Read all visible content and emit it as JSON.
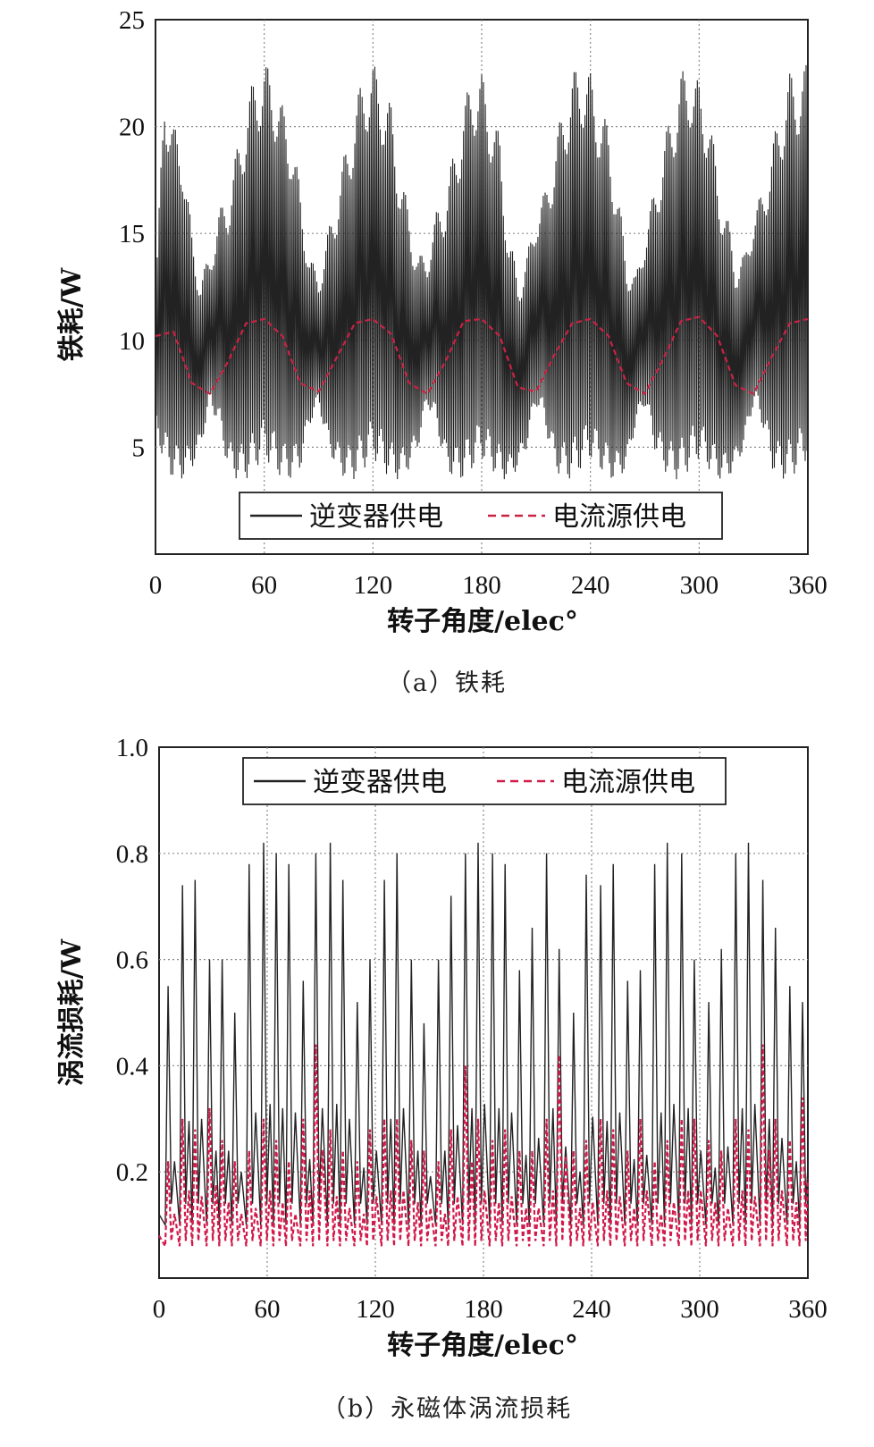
{
  "chart_data": [
    {
      "type": "line",
      "panel": "a",
      "caption": "（a）铁耗",
      "xlabel": "转子角度/elec°",
      "ylabel": "铁耗/W",
      "xlim": [
        0,
        360
      ],
      "ylim": [
        0,
        25
      ],
      "xticks": [
        0,
        60,
        120,
        180,
        240,
        300,
        360
      ],
      "xtick_labels": [
        "0",
        "60",
        "120",
        "180",
        "240",
        "300",
        "360"
      ],
      "yticks": [
        5,
        10,
        15,
        20,
        25
      ],
      "ytick_labels": [
        "5",
        "10",
        "15",
        "20",
        "25"
      ],
      "grid": true,
      "legend_position": "bottom-center",
      "series": [
        {
          "name": "逆变器供电",
          "style": "solid",
          "color": "#222222",
          "description_values": {
            "mean": 10,
            "min": 3,
            "max": 23.5
          },
          "x": [
            0,
            5,
            10,
            15,
            20,
            25,
            30,
            35,
            40,
            45,
            50,
            55,
            60,
            65,
            70,
            75,
            80,
            85,
            90,
            95,
            100,
            105,
            110,
            115,
            120,
            125,
            130,
            135,
            140,
            145,
            150,
            155,
            160,
            165,
            170,
            175,
            180,
            185,
            190,
            195,
            200,
            205,
            210,
            215,
            220,
            225,
            230,
            235,
            240,
            245,
            250,
            255,
            260,
            265,
            270,
            275,
            280,
            285,
            290,
            295,
            300,
            305,
            310,
            315,
            320,
            325,
            330,
            335,
            340,
            345,
            350,
            355,
            360
          ],
          "y_max": [
            12,
            22.5,
            20,
            19.5,
            15,
            13,
            14,
            16,
            17,
            19,
            21,
            22.5,
            23,
            22.5,
            21,
            20,
            17,
            14,
            13,
            15,
            17,
            19,
            21,
            22.5,
            23,
            22,
            21,
            18,
            16,
            14,
            14,
            16,
            17,
            19,
            21,
            22.5,
            22.5,
            21,
            19.5,
            15,
            13,
            14,
            16,
            17,
            19,
            21,
            22.5,
            23,
            22.5,
            21,
            20,
            17,
            14,
            13,
            15,
            17,
            19,
            21,
            22.5,
            23,
            22,
            21,
            18,
            16,
            14,
            14,
            16,
            17,
            19,
            21,
            22.5,
            22.5,
            23
          ],
          "y_min": [
            6,
            4,
            3.5,
            3.5,
            4,
            5,
            7,
            6,
            4,
            3.5,
            3.5,
            4,
            4.5,
            4,
            3.5,
            3.5,
            4,
            6,
            7,
            5,
            4,
            3.5,
            3.5,
            4,
            4.5,
            4,
            3.5,
            3.5,
            4,
            5,
            7,
            6,
            4,
            3.5,
            3.5,
            4,
            4.5,
            4,
            3.5,
            3.5,
            4,
            5,
            7,
            6,
            4,
            3.5,
            3.5,
            4,
            4.5,
            4,
            3.5,
            3.5,
            4,
            6,
            7,
            5,
            4,
            3.5,
            3.5,
            4,
            4.5,
            4,
            3.5,
            3.5,
            4,
            5,
            7,
            6,
            4,
            3.5,
            3.5,
            4,
            4.5
          ]
        },
        {
          "name": "电流源供电",
          "style": "dashed",
          "color": "#cc2244",
          "x": [
            0,
            10,
            20,
            30,
            40,
            50,
            60,
            70,
            80,
            90,
            100,
            110,
            120,
            130,
            140,
            150,
            160,
            170,
            180,
            190,
            200,
            210,
            220,
            230,
            240,
            250,
            260,
            270,
            280,
            290,
            300,
            310,
            320,
            330,
            340,
            350,
            360
          ],
          "y": [
            10.2,
            10.4,
            8,
            7.5,
            9,
            10.8,
            11,
            10.2,
            8,
            7.6,
            9.2,
            10.8,
            11,
            10.3,
            8,
            7.5,
            9,
            10.9,
            11,
            10.2,
            7.8,
            7.6,
            9.3,
            10.8,
            11,
            10.2,
            8,
            7.5,
            9.1,
            10.9,
            11.1,
            10.2,
            7.9,
            7.5,
            9.2,
            10.8,
            11
          ]
        }
      ]
    },
    {
      "type": "line",
      "panel": "b",
      "caption": "（b）永磁体涡流损耗",
      "xlabel": "转子角度/elec°",
      "ylabel": "涡流损耗/W",
      "xlim": [
        0,
        360
      ],
      "ylim": [
        0,
        1.0
      ],
      "xticks": [
        0,
        60,
        120,
        180,
        240,
        300,
        360
      ],
      "xtick_labels": [
        "0",
        "60",
        "120",
        "180",
        "240",
        "300",
        "360"
      ],
      "yticks": [
        0.2,
        0.4,
        0.6,
        0.8,
        1.0
      ],
      "ytick_labels": [
        "0.2",
        "0.4",
        "0.6",
        "0.8",
        "1.0"
      ],
      "grid": true,
      "legend_position": "top-center",
      "series": [
        {
          "name": "逆变器供电",
          "style": "solid",
          "color": "#222222",
          "peaks_x": [
            5,
            13,
            20,
            28,
            35,
            42,
            50,
            58,
            65,
            72,
            80,
            87,
            95,
            102,
            110,
            117,
            125,
            132,
            140,
            147,
            155,
            162,
            170,
            177,
            185,
            192,
            200,
            207,
            215,
            222,
            230,
            237,
            245,
            252,
            260,
            267,
            275,
            282,
            290,
            297,
            305,
            312,
            320,
            327,
            335,
            342,
            350,
            357
          ],
          "peaks_y": [
            0.55,
            0.74,
            0.75,
            0.6,
            0.6,
            0.5,
            0.78,
            0.82,
            0.8,
            0.78,
            0.56,
            0.8,
            0.82,
            0.75,
            0.52,
            0.6,
            0.75,
            0.8,
            0.6,
            0.48,
            0.6,
            0.72,
            0.8,
            0.82,
            0.8,
            0.78,
            0.58,
            0.66,
            0.8,
            0.62,
            0.5,
            0.76,
            0.74,
            0.78,
            0.56,
            0.58,
            0.78,
            0.82,
            0.8,
            0.6,
            0.52,
            0.62,
            0.8,
            0.82,
            0.75,
            0.66,
            0.55,
            0.52
          ],
          "baseline": 0.08
        },
        {
          "name": "电流源供电",
          "style": "dashed",
          "color": "#d11a4a",
          "peaks_x": [
            5,
            13,
            20,
            28,
            35,
            42,
            50,
            58,
            65,
            72,
            80,
            87,
            95,
            102,
            110,
            117,
            125,
            132,
            140,
            147,
            155,
            162,
            170,
            177,
            185,
            192,
            200,
            207,
            215,
            222,
            230,
            237,
            245,
            252,
            260,
            267,
            275,
            282,
            290,
            297,
            305,
            312,
            320,
            327,
            335,
            342,
            350,
            357
          ],
          "peaks_y": [
            0.22,
            0.3,
            0.28,
            0.32,
            0.26,
            0.22,
            0.24,
            0.3,
            0.26,
            0.22,
            0.3,
            0.44,
            0.28,
            0.24,
            0.22,
            0.28,
            0.3,
            0.3,
            0.26,
            0.24,
            0.22,
            0.28,
            0.4,
            0.3,
            0.26,
            0.28,
            0.24,
            0.24,
            0.3,
            0.42,
            0.24,
            0.26,
            0.3,
            0.28,
            0.24,
            0.3,
            0.22,
            0.26,
            0.3,
            0.3,
            0.26,
            0.24,
            0.3,
            0.28,
            0.44,
            0.3,
            0.26,
            0.34
          ],
          "baseline": 0.04
        }
      ]
    }
  ]
}
